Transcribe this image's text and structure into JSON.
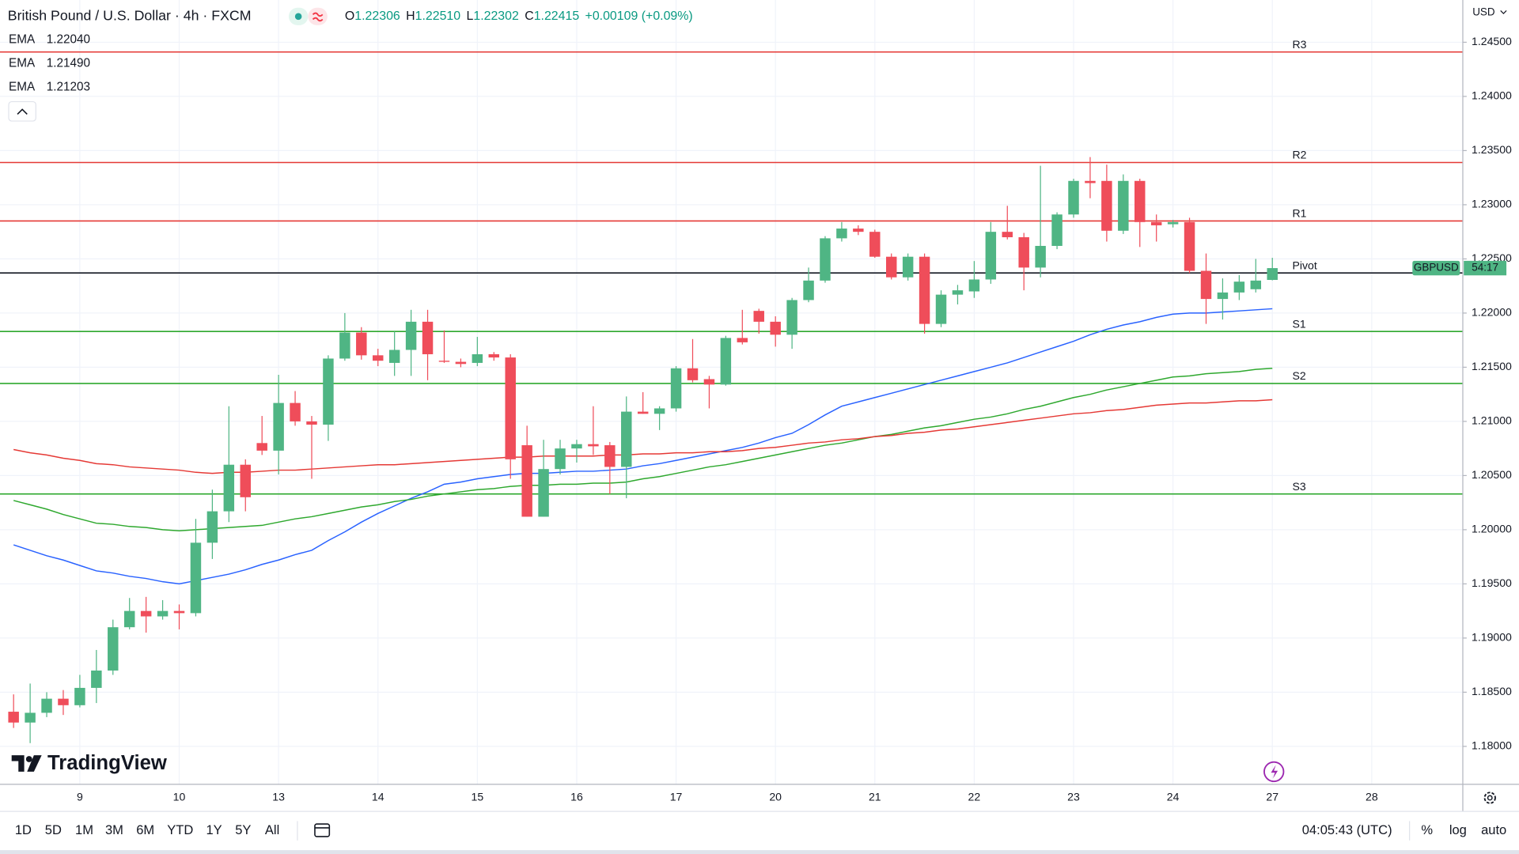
{
  "chart_data": {
    "type": "candlestick",
    "title": "British Pound / U.S. Dollar · 4h · FXCM",
    "ohlc": [
      {
        "label": "O",
        "value": "1.22306"
      },
      {
        "label": "H",
        "value": "1.22510"
      },
      {
        "label": "L",
        "value": "1.22302"
      },
      {
        "label": "C",
        "value": "1.22415"
      }
    ],
    "change": "+0.00109 (+0.09%)",
    "currency": "USD",
    "symbol": "GBPUSD",
    "countdown": "54:17",
    "up_color": "#4fb584",
    "down_color": "#ef4d5a",
    "candles": {
      "open": [
        1.1832,
        1.1822,
        1.1831,
        1.1844,
        1.1838,
        1.1854,
        1.187,
        1.191,
        1.1925,
        1.192,
        1.1925,
        1.1923,
        1.1988,
        1.2017,
        1.206,
        1.208,
        1.2073,
        1.2117,
        1.21,
        1.2097,
        1.2158,
        1.2182,
        1.2161,
        1.2154,
        1.2166,
        1.2192,
        1.2156,
        1.2155,
        1.2154,
        1.2162,
        1.2159,
        1.2078,
        1.2012,
        1.2056,
        1.2075,
        1.2079,
        1.2078,
        1.2058,
        1.2109,
        1.2107,
        1.2112,
        1.2149,
        1.2139,
        1.2134,
        1.2177,
        1.2202,
        1.2192,
        1.218,
        1.2212,
        1.223,
        1.2269,
        1.2278,
        1.2275,
        1.2252,
        1.2233,
        1.2252,
        1.219,
        1.2217,
        1.222,
        1.2231,
        1.2275,
        1.227,
        1.2242,
        1.2262,
        1.2291,
        1.2322,
        1.2322,
        1.2276,
        1.2322,
        1.2284,
        1.2282,
        1.2284,
        1.2239,
        1.2213,
        1.2219,
        1.2222,
        1.22306
      ],
      "high": [
        1.1848,
        1.1858,
        1.185,
        1.1852,
        1.1866,
        1.1889,
        1.1917,
        1.1937,
        1.1938,
        1.1935,
        1.1931,
        1.201,
        1.2037,
        1.2114,
        1.2065,
        1.2105,
        1.2143,
        1.2128,
        1.2105,
        1.2161,
        1.22,
        1.2187,
        1.2167,
        1.2183,
        1.2203,
        1.2203,
        1.2184,
        1.2158,
        1.2178,
        1.2164,
        1.2162,
        1.2096,
        1.2083,
        1.2083,
        1.2083,
        1.2114,
        1.2081,
        1.2123,
        1.2127,
        1.2114,
        1.2151,
        1.2176,
        1.2142,
        1.2179,
        1.2203,
        1.2204,
        1.2197,
        1.2214,
        1.2242,
        1.2271,
        1.2284,
        1.2281,
        1.2277,
        1.2255,
        1.2255,
        1.2255,
        1.2221,
        1.2226,
        1.2248,
        1.2284,
        1.2299,
        1.2274,
        1.2336,
        1.2293,
        1.2324,
        1.2344,
        1.2337,
        1.2328,
        1.2324,
        1.2291,
        1.2286,
        1.2288,
        1.2255,
        1.2232,
        1.2235,
        1.225,
        1.2251
      ],
      "low": [
        1.1817,
        1.1803,
        1.1827,
        1.1829,
        1.1836,
        1.184,
        1.1866,
        1.1908,
        1.1905,
        1.1917,
        1.1908,
        1.192,
        1.1973,
        1.2007,
        1.2017,
        1.2069,
        1.2051,
        1.2096,
        1.2047,
        1.2082,
        1.2156,
        1.2157,
        1.2151,
        1.2142,
        1.2142,
        1.2138,
        1.2154,
        1.215,
        1.2151,
        1.2156,
        1.2047,
        1.2012,
        1.2012,
        1.2051,
        1.2062,
        1.2069,
        1.2033,
        1.2029,
        1.2107,
        1.2092,
        1.2109,
        1.2136,
        1.2112,
        1.2133,
        1.2171,
        1.2181,
        1.2169,
        1.2167,
        1.221,
        1.2228,
        1.2266,
        1.2272,
        1.2251,
        1.2231,
        1.223,
        1.2181,
        1.2187,
        1.2208,
        1.2214,
        1.2227,
        1.2268,
        1.2221,
        1.2233,
        1.2259,
        1.2288,
        1.2306,
        1.2266,
        1.2273,
        1.2261,
        1.2266,
        1.2279,
        1.2237,
        1.219,
        1.2194,
        1.2212,
        1.2219,
        1.22302
      ],
      "close": [
        1.1822,
        1.1831,
        1.1844,
        1.1838,
        1.1854,
        1.187,
        1.191,
        1.1925,
        1.192,
        1.1925,
        1.1923,
        1.1988,
        1.2017,
        1.206,
        1.203,
        1.2073,
        1.2117,
        1.21,
        1.2097,
        1.2158,
        1.2182,
        1.2161,
        1.2156,
        1.2166,
        1.2192,
        1.2162,
        1.2155,
        1.2153,
        1.2162,
        1.2159,
        1.2065,
        1.2012,
        1.2056,
        1.2075,
        1.2079,
        1.2077,
        1.2058,
        1.2109,
        1.2107,
        1.2112,
        1.2149,
        1.2138,
        1.2134,
        1.2177,
        1.2173,
        1.2192,
        1.218,
        1.2212,
        1.223,
        1.2269,
        1.2278,
        1.2275,
        1.2252,
        1.2233,
        1.2252,
        1.219,
        1.2217,
        1.2221,
        1.2231,
        1.2275,
        1.227,
        1.2242,
        1.2262,
        1.2291,
        1.2322,
        1.232,
        1.2276,
        1.2322,
        1.2284,
        1.2281,
        1.2284,
        1.2239,
        1.2213,
        1.2219,
        1.2229,
        1.223,
        1.22415
      ]
    },
    "series": [
      {
        "name": "EMA",
        "value_label": "1.22040",
        "color": "#2962ff",
        "values": [
          1.1986,
          1.1981,
          1.1976,
          1.1972,
          1.1967,
          1.1962,
          1.196,
          1.1957,
          1.1955,
          1.1952,
          1.195,
          1.1953,
          1.1956,
          1.1959,
          1.1963,
          1.1968,
          1.1972,
          1.1977,
          1.1981,
          1.199,
          1.1998,
          1.2007,
          1.2015,
          1.2022,
          1.2029,
          1.2035,
          1.2042,
          1.2044,
          1.2047,
          1.2049,
          1.2051,
          1.2052,
          1.2052,
          1.2053,
          1.2054,
          1.2054,
          1.2055,
          1.2056,
          1.2059,
          1.2061,
          1.2064,
          1.2067,
          1.207,
          1.2073,
          1.2076,
          1.208,
          1.2085,
          1.2089,
          1.2097,
          1.2106,
          1.2114,
          1.2118,
          1.2122,
          1.2126,
          1.213,
          1.2134,
          1.2138,
          1.2142,
          1.2146,
          1.215,
          1.2154,
          1.2159,
          1.2164,
          1.2169,
          1.2174,
          1.218,
          1.2185,
          1.2189,
          1.2192,
          1.2196,
          1.2199,
          1.22,
          1.22,
          1.2201,
          1.2202,
          1.2203,
          1.2204
        ]
      },
      {
        "name": "EMA",
        "value_label": "1.21490",
        "color": "#2ea82e",
        "values": [
          1.2027,
          1.2023,
          1.2019,
          1.2014,
          1.201,
          1.2006,
          1.2005,
          1.2003,
          1.2002,
          1.2,
          1.1999,
          1.2,
          1.2001,
          1.2002,
          1.2003,
          1.2004,
          1.2007,
          1.201,
          1.2012,
          1.2015,
          1.2018,
          1.2021,
          1.2023,
          1.2026,
          1.2028,
          1.2031,
          1.2033,
          1.2035,
          1.2037,
          1.2038,
          1.204,
          1.2041,
          1.2041,
          1.2042,
          1.2042,
          1.2043,
          1.2043,
          1.2044,
          1.2047,
          1.2049,
          1.2052,
          1.2055,
          1.2058,
          1.206,
          1.2063,
          1.2066,
          1.2069,
          1.2072,
          1.2075,
          1.2078,
          1.208,
          1.2083,
          1.2086,
          1.2088,
          1.2091,
          1.2094,
          1.2096,
          1.2099,
          1.2102,
          1.2104,
          1.2107,
          1.2111,
          1.2114,
          1.2118,
          1.2122,
          1.2125,
          1.2129,
          1.2132,
          1.2135,
          1.2138,
          1.2141,
          1.2142,
          1.2144,
          1.2145,
          1.2146,
          1.2148,
          1.2149
        ]
      },
      {
        "name": "EMA",
        "value_label": "1.21203",
        "color": "#e53935",
        "values": [
          1.2074,
          1.2071,
          1.2069,
          1.2066,
          1.2064,
          1.2061,
          1.206,
          1.2058,
          1.2057,
          1.2056,
          1.2055,
          1.2053,
          1.2052,
          1.2053,
          1.2053,
          1.2054,
          1.2055,
          1.2055,
          1.2056,
          1.2057,
          1.2058,
          1.2059,
          1.206,
          1.206,
          1.2061,
          1.2062,
          1.2063,
          1.2064,
          1.2065,
          1.2066,
          1.2067,
          1.2067,
          1.2068,
          1.2068,
          1.2068,
          1.2068,
          1.2069,
          1.2069,
          1.207,
          1.207,
          1.2071,
          1.2071,
          1.2072,
          1.2072,
          1.2073,
          1.2075,
          1.2076,
          1.2078,
          1.208,
          1.2081,
          1.2083,
          1.2084,
          1.2086,
          1.2087,
          1.2089,
          1.209,
          1.2092,
          1.2093,
          1.2095,
          1.2097,
          1.2099,
          1.2101,
          1.2103,
          1.2105,
          1.2107,
          1.2108,
          1.211,
          1.2111,
          1.2113,
          1.2115,
          1.2116,
          1.2117,
          1.2117,
          1.2118,
          1.2119,
          1.2119,
          1.212
        ]
      }
    ],
    "levels": [
      {
        "name": "R3",
        "value": 1.2441,
        "color": "#e53935"
      },
      {
        "name": "R2",
        "value": 1.2339,
        "color": "#e53935"
      },
      {
        "name": "R1",
        "value": 1.2285,
        "color": "#e53935"
      },
      {
        "name": "Pivot",
        "value": 1.2237,
        "color": "#131722"
      },
      {
        "name": "S1",
        "value": 1.2183,
        "color": "#2ea82e"
      },
      {
        "name": "S2",
        "value": 1.2135,
        "color": "#2ea82e"
      },
      {
        "name": "S3",
        "value": 1.2033,
        "color": "#2ea82e"
      }
    ],
    "xlim": [
      -0.82,
      87.5
    ],
    "xticks": [
      {
        "value": 4,
        "label": "9"
      },
      {
        "value": 10,
        "label": "10"
      },
      {
        "value": 16,
        "label": "13"
      },
      {
        "value": 22,
        "label": "14"
      },
      {
        "value": 28,
        "label": "15"
      },
      {
        "value": 34,
        "label": "16"
      },
      {
        "value": 40,
        "label": "17"
      },
      {
        "value": 46,
        "label": "20"
      },
      {
        "value": 52,
        "label": "21"
      },
      {
        "value": 58,
        "label": "22"
      },
      {
        "value": 64,
        "label": "23"
      },
      {
        "value": 70,
        "label": "24"
      },
      {
        "value": 76,
        "label": "27"
      },
      {
        "value": 82,
        "label": "28"
      }
    ],
    "ylim": [
      1.1765,
      1.2489
    ],
    "yticks": [
      {
        "value": 1.18,
        "label": "1.18000"
      },
      {
        "value": 1.185,
        "label": "1.18500"
      },
      {
        "value": 1.19,
        "label": "1.19000"
      },
      {
        "value": 1.195,
        "label": "1.19500"
      },
      {
        "value": 1.2,
        "label": "1.20000"
      },
      {
        "value": 1.205,
        "label": "1.20500"
      },
      {
        "value": 1.21,
        "label": "1.21000"
      },
      {
        "value": 1.215,
        "label": "1.21500"
      },
      {
        "value": 1.22,
        "label": "1.22000"
      },
      {
        "value": 1.225,
        "label": "1.22500"
      },
      {
        "value": 1.23,
        "label": "1.23000"
      },
      {
        "value": 1.235,
        "label": "1.23500"
      },
      {
        "value": 1.24,
        "label": "1.24000"
      },
      {
        "value": 1.245,
        "label": "1.24500"
      }
    ],
    "grid": true
  },
  "ui": {
    "logo": "TradingView",
    "ranges": [
      "1D",
      "5D",
      "1M",
      "3M",
      "6M",
      "YTD",
      "1Y",
      "5Y",
      "All"
    ],
    "clock": "04:05:43 (UTC)",
    "scale_options": [
      "%",
      "log",
      "auto"
    ]
  }
}
